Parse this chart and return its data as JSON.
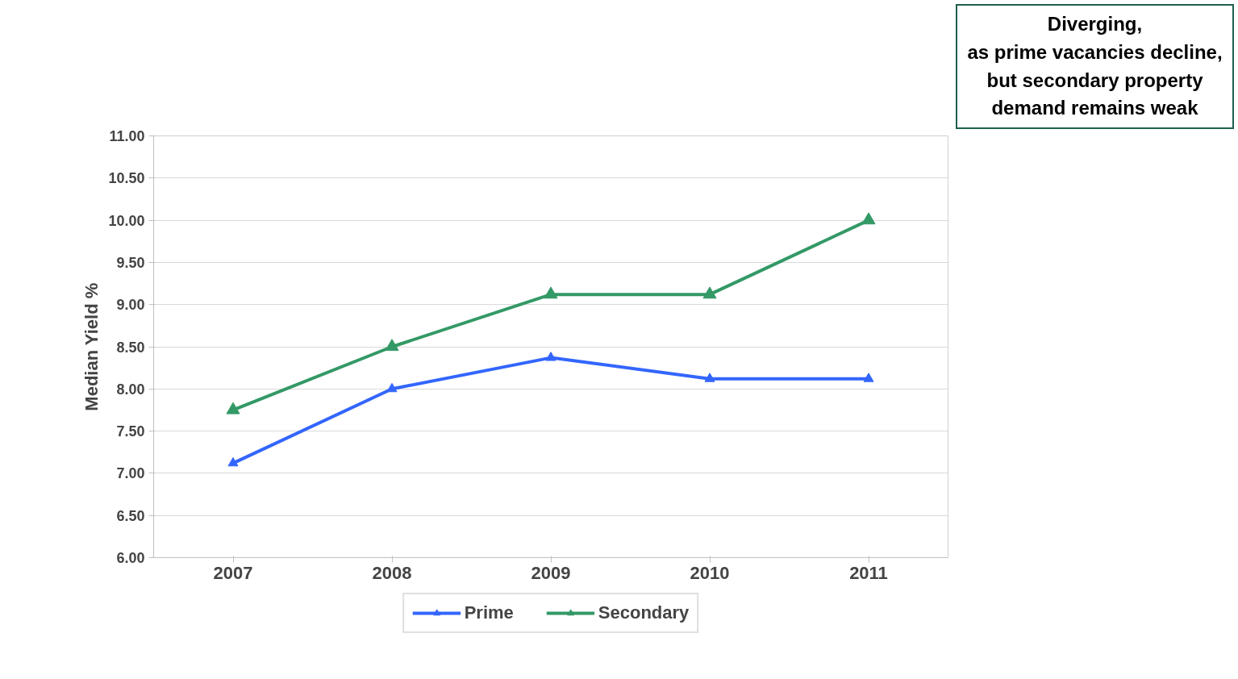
{
  "chart_data": {
    "type": "line",
    "ylabel": "Median Yield %",
    "categories": [
      "2007",
      "2008",
      "2009",
      "2010",
      "2011"
    ],
    "series": [
      {
        "name": "Prime",
        "color": "#3366ff",
        "values": [
          7.12,
          8.0,
          8.37,
          8.12,
          8.12
        ]
      },
      {
        "name": "Secondary",
        "color": "#339966",
        "values": [
          7.75,
          8.5,
          9.12,
          9.12,
          10.0
        ]
      }
    ],
    "ylim": [
      6,
      11
    ],
    "yticks": [
      {
        "value": 6,
        "label": "6.00"
      },
      {
        "value": 6.5,
        "label": "6.50"
      },
      {
        "value": 7,
        "label": "7.00"
      },
      {
        "value": 7.5,
        "label": "7.50"
      },
      {
        "value": 8,
        "label": "8.00"
      },
      {
        "value": 8.5,
        "label": "8.50"
      },
      {
        "value": 9,
        "label": "9.00"
      },
      {
        "value": 9.5,
        "label": "9.50"
      },
      {
        "value": 10,
        "label": "10.00"
      },
      {
        "value": 10.5,
        "label": "10.50"
      },
      {
        "value": 11,
        "label": "11.00"
      }
    ],
    "grid": "y",
    "legend": "bottom",
    "marker": "triangle",
    "line_style": "solid",
    "annotations": [
      "Diverging,\nas prime vacancies decline,\nbut secondary property\ndemand remains weak"
    ]
  }
}
